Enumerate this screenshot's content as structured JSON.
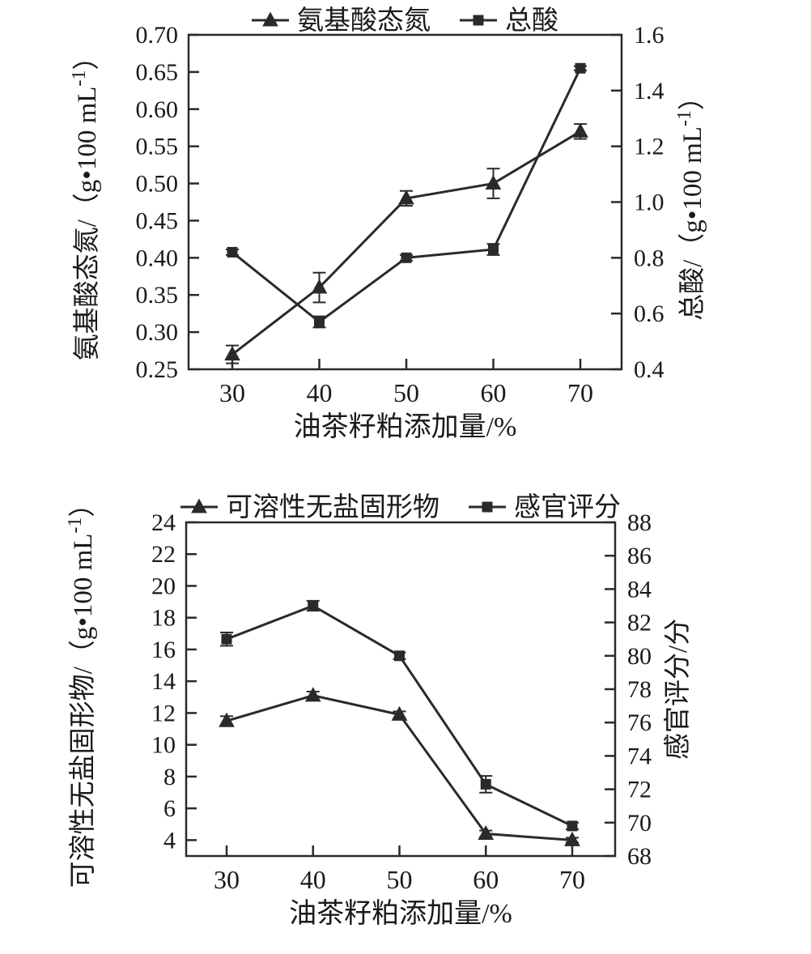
{
  "colors": {
    "ink": "#2a2a2a",
    "background": "#ffffff"
  },
  "chart_data": [
    {
      "type": "line",
      "title": "",
      "x": [
        30,
        40,
        50,
        60,
        70
      ],
      "x_tick_labels": [
        "30",
        "40",
        "50",
        "60",
        "70"
      ],
      "xlabel": "油茶籽粕添加量/%",
      "grid": false,
      "legend": {
        "position": "top",
        "entries": [
          "氨基酸态氮",
          "总酸"
        ]
      },
      "axes": {
        "left": {
          "label": "氨基酸态氮/（g•100 mL⁻¹）",
          "min": 0.25,
          "max": 0.7,
          "ticks": [
            0.25,
            0.3,
            0.35,
            0.4,
            0.45,
            0.5,
            0.55,
            0.6,
            0.65,
            0.7
          ],
          "decimals": 2
        },
        "right": {
          "label": "总酸/（g•100 mL⁻¹）",
          "min": 0.4,
          "max": 1.6,
          "ticks": [
            0.4,
            0.6,
            0.8,
            1.0,
            1.2,
            1.4,
            1.6
          ],
          "decimals": 1
        }
      },
      "series": [
        {
          "name": "氨基酸态氮",
          "axis": "left",
          "marker": "triangle",
          "values": [
            0.27,
            0.36,
            0.48,
            0.5,
            0.57
          ],
          "errors": [
            0.012,
            0.02,
            0.01,
            0.02,
            0.01
          ]
        },
        {
          "name": "总酸",
          "axis": "right",
          "marker": "square",
          "values": [
            0.82,
            0.57,
            0.8,
            0.83,
            1.48
          ],
          "errors": [
            0.01,
            0.02,
            0.01,
            0.02,
            0.008
          ]
        }
      ]
    },
    {
      "type": "line",
      "title": "",
      "x": [
        30,
        40,
        50,
        60,
        70
      ],
      "x_tick_labels": [
        "30",
        "40",
        "50",
        "60",
        "70"
      ],
      "xlabel": "油茶籽粕添加量/%",
      "grid": false,
      "legend": {
        "position": "top",
        "entries": [
          "可溶性无盐固形物",
          "感官评分"
        ]
      },
      "axes": {
        "left": {
          "label": "可溶性无盐固形物/（g•100 mL⁻¹）",
          "min": 3,
          "max": 24,
          "ticks": [
            4,
            6,
            8,
            10,
            12,
            14,
            16,
            18,
            20,
            22,
            24
          ],
          "decimals": 0
        },
        "right": {
          "label": "感官评分/分",
          "min": 68,
          "max": 88,
          "ticks": [
            68,
            70,
            72,
            74,
            76,
            78,
            80,
            82,
            84,
            86,
            88
          ],
          "decimals": 0
        }
      },
      "series": [
        {
          "name": "可溶性无盐固形物",
          "axis": "left",
          "marker": "triangle",
          "values": [
            11.5,
            13.1,
            11.9,
            4.4,
            4.0
          ],
          "errors": [
            0.3,
            0.25,
            0.2,
            0.2,
            0.15
          ]
        },
        {
          "name": "感官评分",
          "axis": "right",
          "marker": "square",
          "values": [
            81,
            83,
            80,
            72.3,
            69.8
          ],
          "errors": [
            0.4,
            0.3,
            0.2,
            0.5,
            0.2
          ]
        }
      ]
    }
  ]
}
